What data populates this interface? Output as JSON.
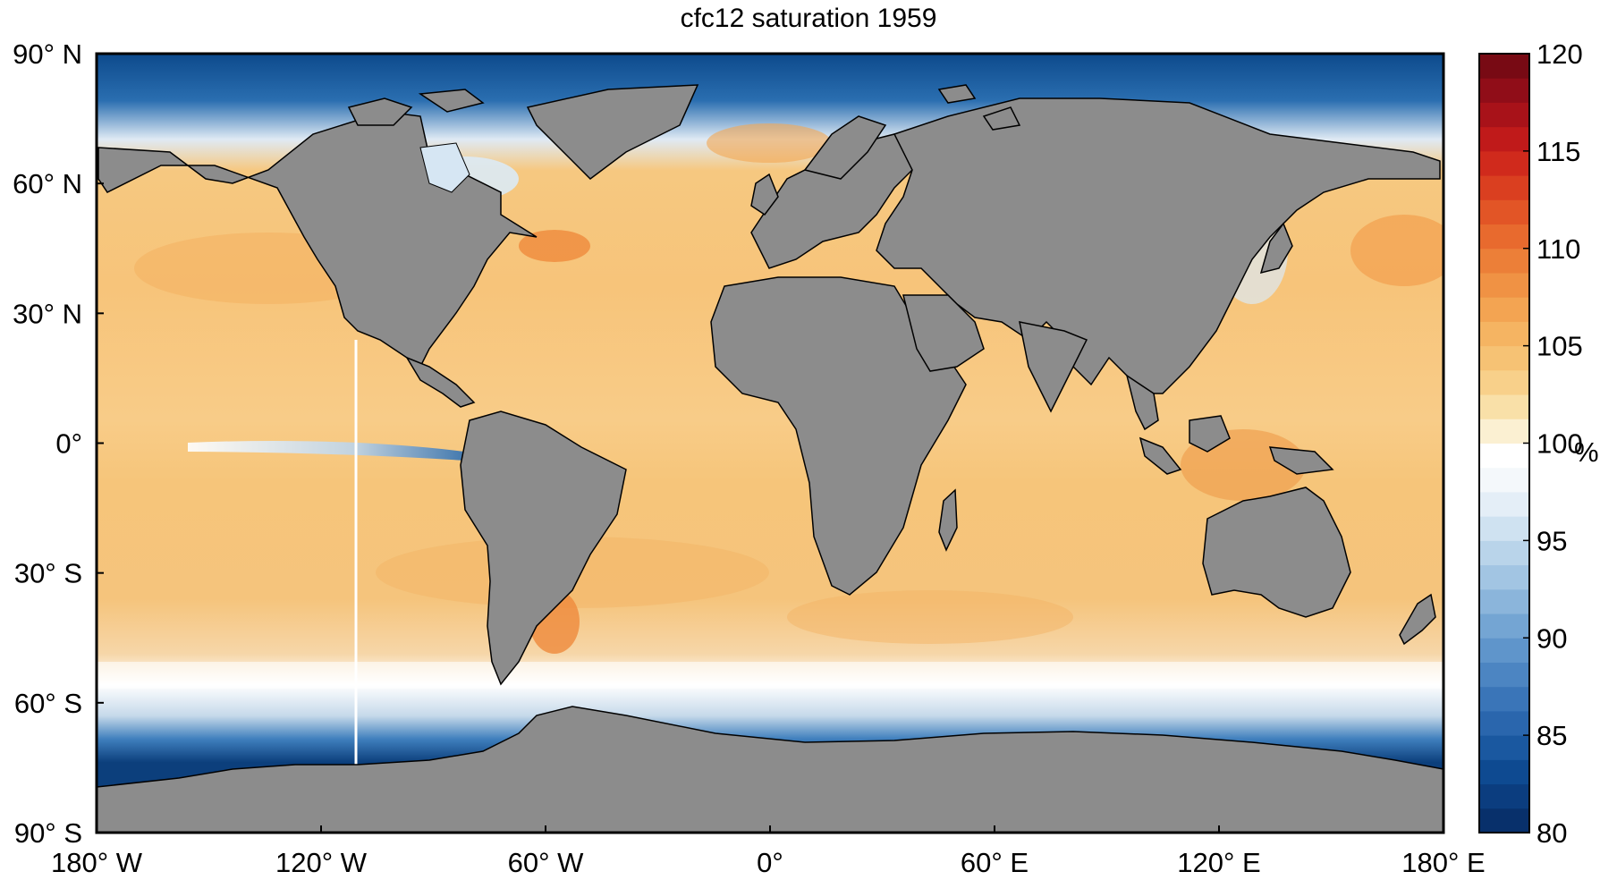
{
  "title": "cfc12 saturation 1959",
  "lat_ticks": [
    {
      "value": 90,
      "label": "90° N"
    },
    {
      "value": 60,
      "label": "60° N"
    },
    {
      "value": 30,
      "label": "30° N"
    },
    {
      "value": 0,
      "label": "0°"
    },
    {
      "value": -30,
      "label": "30° S"
    },
    {
      "value": -60,
      "label": "60° S"
    },
    {
      "value": -90,
      "label": "90° S"
    }
  ],
  "lon_ticks": [
    {
      "value": -180,
      "label": "180° W"
    },
    {
      "value": -120,
      "label": "120° W"
    },
    {
      "value": -60,
      "label": "60° W"
    },
    {
      "value": 0,
      "label": "0°"
    },
    {
      "value": 60,
      "label": "60° E"
    },
    {
      "value": 120,
      "label": "120° E"
    },
    {
      "value": 180,
      "label": "180° E"
    }
  ],
  "colorbar": {
    "unit": "%",
    "min": 80,
    "max": 120,
    "ticks": [
      "80",
      "85",
      "90",
      "95",
      "100",
      "105",
      "110",
      "115",
      "120"
    ]
  },
  "colors": {
    "land": "#8c8c8c",
    "ocean_mid": "#f6c878",
    "deep_blue": "#0c3f7c"
  }
}
